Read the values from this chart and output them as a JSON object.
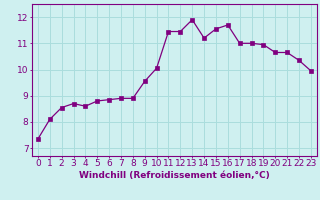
{
  "x": [
    0,
    1,
    2,
    3,
    4,
    5,
    6,
    7,
    8,
    9,
    10,
    11,
    12,
    13,
    14,
    15,
    16,
    17,
    18,
    19,
    20,
    21,
    22,
    23
  ],
  "y": [
    7.35,
    8.1,
    8.55,
    8.7,
    8.6,
    8.8,
    8.85,
    8.9,
    8.9,
    9.55,
    10.05,
    11.45,
    11.45,
    11.9,
    11.2,
    11.55,
    11.7,
    11.0,
    11.0,
    10.95,
    10.65,
    10.65,
    10.35,
    9.95
  ],
  "line_color": "#800080",
  "marker": "s",
  "marker_size": 2.5,
  "bg_color": "#cff0f0",
  "grid_color": "#aadddd",
  "axis_color": "#800080",
  "xlabel": "Windchill (Refroidissement éolien,°C)",
  "xlabel_fontsize": 6.5,
  "xtick_labels": [
    "0",
    "1",
    "2",
    "3",
    "4",
    "5",
    "6",
    "7",
    "8",
    "9",
    "10",
    "11",
    "12",
    "13",
    "14",
    "15",
    "16",
    "17",
    "18",
    "19",
    "20",
    "21",
    "22",
    "23"
  ],
  "ytick_vals": [
    7,
    8,
    9,
    10,
    11,
    12
  ],
  "ylim": [
    6.7,
    12.5
  ],
  "xlim": [
    -0.5,
    23.5
  ],
  "tick_fontsize": 6.5,
  "tick_color": "#800080",
  "spine_color": "#800080"
}
